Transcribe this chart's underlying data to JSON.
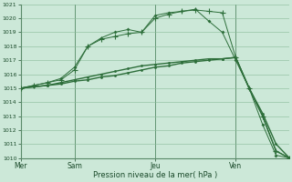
{
  "xlabel": "Pression niveau de la mer( hPa )",
  "background_color": "#cce8d8",
  "plot_bg_color": "#cce8d8",
  "grid_color": "#88bb99",
  "line_color": "#2d6e3a",
  "ylim": [
    1010,
    1021
  ],
  "yticks": [
    1010,
    1011,
    1012,
    1013,
    1014,
    1015,
    1016,
    1017,
    1018,
    1019,
    1020,
    1021
  ],
  "day_labels": [
    "Mer",
    "Sam",
    "Jeu",
    "Ven"
  ],
  "day_positions": [
    0,
    4,
    10,
    16
  ],
  "xlim": [
    0,
    20
  ],
  "line1_x": [
    0,
    1,
    2,
    3,
    4,
    5,
    6,
    7,
    8,
    9,
    10,
    11,
    12,
    13,
    14,
    15,
    16,
    17,
    18,
    19,
    20
  ],
  "line1_y": [
    1015.0,
    1015.1,
    1015.2,
    1015.4,
    1015.6,
    1015.8,
    1016.0,
    1016.2,
    1016.4,
    1016.6,
    1016.7,
    1016.8,
    1016.9,
    1017.0,
    1017.1,
    1017.1,
    1017.2,
    1015.0,
    1013.2,
    1011.0,
    1010.0
  ],
  "line2_x": [
    0,
    1,
    2,
    3,
    4,
    5,
    6,
    7,
    8,
    9,
    10,
    11,
    12,
    13,
    14,
    15,
    16,
    17,
    18,
    19,
    20
  ],
  "line2_y": [
    1015.0,
    1015.1,
    1015.2,
    1015.3,
    1015.5,
    1015.6,
    1015.8,
    1015.9,
    1016.1,
    1016.3,
    1016.5,
    1016.6,
    1016.8,
    1016.9,
    1017.0,
    1017.1,
    1017.2,
    1015.0,
    1013.0,
    1010.5,
    1010.0
  ],
  "line3_x": [
    0,
    1,
    2,
    3,
    4,
    5,
    6,
    7,
    8,
    9,
    10,
    11,
    12,
    13,
    14,
    15,
    16,
    17,
    18,
    19,
    20
  ],
  "line3_y": [
    1015.0,
    1015.2,
    1015.4,
    1015.6,
    1016.3,
    1018.0,
    1018.5,
    1018.7,
    1018.9,
    1019.0,
    1020.0,
    1020.3,
    1020.5,
    1020.6,
    1020.5,
    1020.4,
    1017.2,
    1015.0,
    1013.0,
    1010.5,
    1010.0
  ],
  "line4_x": [
    0,
    1,
    2,
    3,
    4,
    5,
    6,
    7,
    8,
    9,
    10,
    11,
    12,
    13,
    14,
    15,
    16,
    17,
    18,
    19,
    20
  ],
  "line4_y": [
    1015.0,
    1015.2,
    1015.4,
    1015.7,
    1016.5,
    1018.0,
    1018.6,
    1019.0,
    1019.2,
    1019.0,
    1020.2,
    1020.4,
    1020.5,
    1020.65,
    1019.8,
    1019.0,
    1017.0,
    1015.0,
    1012.4,
    1010.2,
    1010.0
  ]
}
